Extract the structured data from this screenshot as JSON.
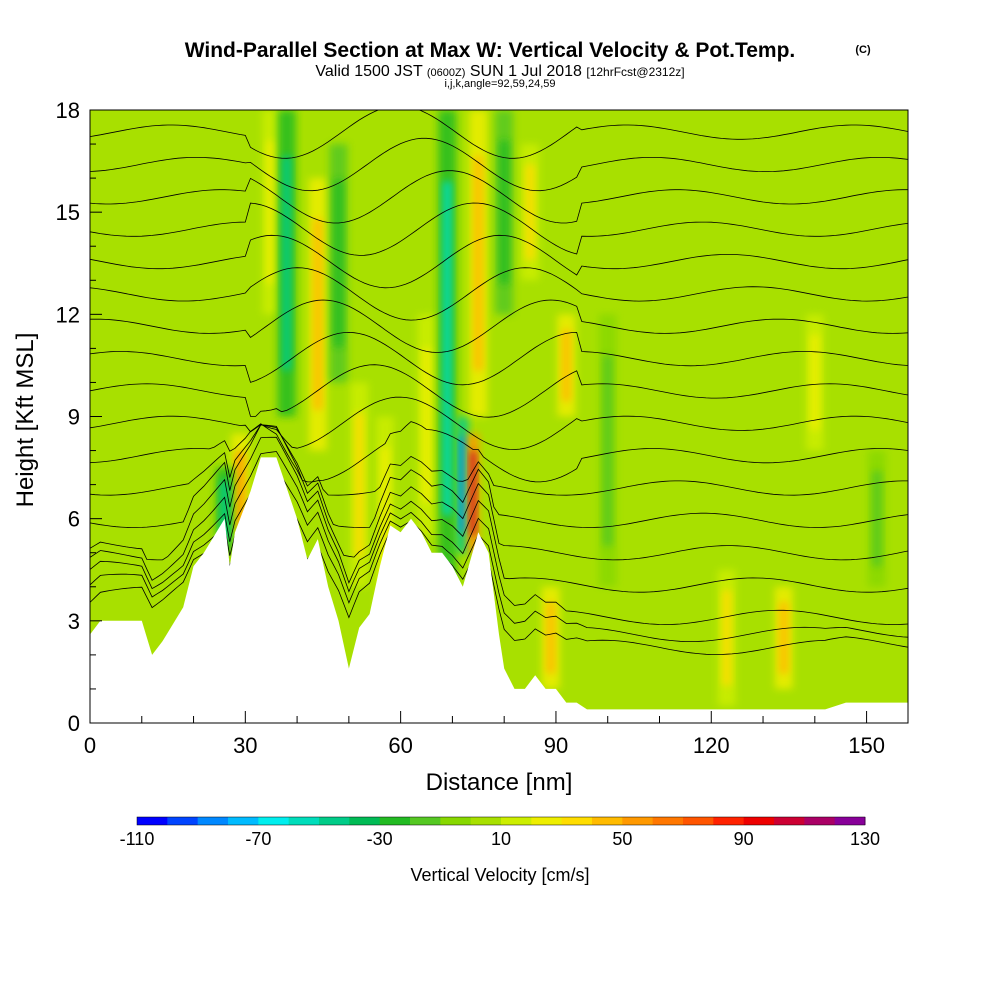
{
  "header": {
    "title": "Wind-Parallel Section at Max W: Vertical Velocity & Pot.Temp.",
    "copyright": "(C)",
    "valid_prefix": "Valid 1500 JST",
    "valid_utc": "(0600Z)",
    "valid_date": "SUN 1 Jul 2018",
    "forecast": "[12hrFcst@2312z]",
    "indices": "i,j,k,angle=92,59,24,59"
  },
  "colors": {
    "background_field": "#a8e000",
    "terrain": "#ffffff",
    "contour": "#000000"
  },
  "chart_data": {
    "type": "heatmap",
    "xlabel": "Distance [nm]",
    "ylabel": "Height [Kft MSL]",
    "xlim": [
      0,
      158
    ],
    "ylim": [
      0,
      18
    ],
    "xticks": [
      0,
      30,
      60,
      90,
      120,
      150
    ],
    "yticks": [
      0,
      3,
      6,
      9,
      12,
      15,
      18
    ],
    "grid": false,
    "colorbar": {
      "label": "Vertical Velocity [cm/s]",
      "min": -110,
      "max": 130,
      "step": 10,
      "tick_labels": [
        "-110",
        "-70",
        "-30",
        "10",
        "50",
        "90",
        "130"
      ],
      "colors": [
        "#0000ff",
        "#0044ff",
        "#0088ff",
        "#00bbff",
        "#00eeee",
        "#00ddbb",
        "#00cc88",
        "#00bb55",
        "#22bb22",
        "#55c822",
        "#88d800",
        "#a8e000",
        "#ccee00",
        "#eeee00",
        "#ffdd00",
        "#ffbb00",
        "#ff9900",
        "#ff7700",
        "#ff5500",
        "#ff2200",
        "#ee0000",
        "#cc0033",
        "#aa0066",
        "#880099"
      ]
    },
    "terrain_profile": {
      "x": [
        0,
        2,
        10,
        12,
        14,
        18,
        20,
        22,
        26,
        27,
        28,
        31,
        33,
        36,
        40,
        42,
        44,
        46,
        48,
        50,
        52,
        54,
        56,
        58,
        60,
        62,
        64,
        66,
        68,
        70,
        72,
        75,
        77,
        79,
        80,
        82,
        84,
        86,
        88,
        90,
        92,
        94,
        96,
        100,
        105,
        110,
        115,
        120,
        125,
        130,
        135,
        140,
        142,
        146,
        150,
        155,
        158
      ],
      "height_kft": [
        2.6,
        3.0,
        3.0,
        2.0,
        2.4,
        3.4,
        4.6,
        5.0,
        6.0,
        4.6,
        5.6,
        6.8,
        7.8,
        7.8,
        6.0,
        4.8,
        5.4,
        4.0,
        3.0,
        1.6,
        2.8,
        3.2,
        4.6,
        5.8,
        5.6,
        6.0,
        5.6,
        5.0,
        5.0,
        4.6,
        4.0,
        5.6,
        5.0,
        2.6,
        1.6,
        1.0,
        1.0,
        1.4,
        1.0,
        1.0,
        0.6,
        0.6,
        0.4,
        0.4,
        0.4,
        0.4,
        0.4,
        0.4,
        0.4,
        0.4,
        0.4,
        0.4,
        0.4,
        0.6,
        0.6,
        0.6,
        0.6
      ]
    },
    "vertical_velocity_features": [
      {
        "x": 29,
        "z_min": 5.0,
        "z_max": 8.5,
        "w": 50
      },
      {
        "x": 26,
        "z_min": 5.0,
        "z_max": 7.5,
        "w": -50
      },
      {
        "x": 35,
        "z_min": 12.0,
        "z_max": 18,
        "w": 20
      },
      {
        "x": 38,
        "z_min": 9.0,
        "z_max": 18,
        "w": -50
      },
      {
        "x": 44,
        "z_min": 8.0,
        "z_max": 16.0,
        "w": 40
      },
      {
        "x": 48,
        "z_min": 10.0,
        "z_max": 17.0,
        "w": -30
      },
      {
        "x": 52,
        "z_min": 4.0,
        "z_max": 10.0,
        "w": 30
      },
      {
        "x": 57,
        "z_min": 3.0,
        "z_max": 9.0,
        "w": 20
      },
      {
        "x": 65,
        "z_min": 5.5,
        "z_max": 12.0,
        "w": 20
      },
      {
        "x": 69,
        "z_min": 4.0,
        "z_max": 18,
        "w": -60
      },
      {
        "x": 72,
        "z_min": 5.0,
        "z_max": 9.0,
        "w": -90
      },
      {
        "x": 74,
        "z_min": 5.0,
        "z_max": 8.5,
        "w": 100
      },
      {
        "x": 75,
        "z_min": 9.0,
        "z_max": 18,
        "w": 40
      },
      {
        "x": 80,
        "z_min": 12.0,
        "z_max": 18,
        "w": -30
      },
      {
        "x": 85,
        "z_min": 13.0,
        "z_max": 17.0,
        "w": 30
      },
      {
        "x": 89,
        "z_min": 1.0,
        "z_max": 4.0,
        "w": 40
      },
      {
        "x": 92,
        "z_min": 9.0,
        "z_max": 12.0,
        "w": 40
      },
      {
        "x": 100,
        "z_min": 4.0,
        "z_max": 12.0,
        "w": -20
      },
      {
        "x": 123,
        "z_min": 0.5,
        "z_max": 4.5,
        "w": 30
      },
      {
        "x": 134,
        "z_min": 1.0,
        "z_max": 4.0,
        "w": 40
      },
      {
        "x": 140,
        "z_min": 8.0,
        "z_max": 12.0,
        "w": 20
      },
      {
        "x": 152,
        "z_min": 4.0,
        "z_max": 8.0,
        "w": -20
      }
    ]
  }
}
